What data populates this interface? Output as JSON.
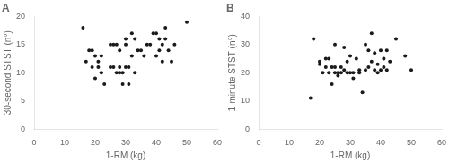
{
  "chart_data": [
    {
      "type": "scatter",
      "title": "A",
      "x_label": "1-RM (kg)",
      "y_label": "30-second STST (n°)",
      "color": "#1a1a1a",
      "grid": false,
      "xlim": [
        0,
        60
      ],
      "ylim": [
        0,
        20
      ],
      "xticks": [
        0,
        10,
        20,
        30,
        40,
        50,
        60
      ],
      "yticks": [
        0,
        5,
        10,
        15,
        20
      ],
      "x": [
        16,
        17,
        18,
        19,
        19,
        20,
        20,
        21,
        21,
        22,
        22,
        23,
        25,
        25,
        26,
        26,
        27,
        27,
        28,
        28,
        28,
        29,
        29,
        30,
        30,
        30,
        31,
        31,
        32,
        32,
        33,
        33,
        34,
        35,
        36,
        37,
        38,
        39,
        40,
        40,
        41,
        41,
        42,
        42,
        43,
        43,
        44,
        45,
        46,
        50
      ],
      "values": [
        18,
        12,
        14,
        11,
        14,
        9,
        13,
        11,
        12,
        10,
        13,
        8,
        15,
        11,
        15,
        11,
        10,
        15,
        10,
        11,
        14,
        10,
        8,
        11,
        15,
        16,
        11,
        8,
        13,
        17,
        10,
        16,
        14,
        14,
        13,
        15,
        15,
        17,
        17,
        13,
        14,
        16,
        15,
        12,
        16,
        18,
        14,
        12,
        15,
        19
      ]
    },
    {
      "type": "scatter",
      "title": "B",
      "x_label": "1-RM (kg)",
      "y_label": "1-minute STST (n°)",
      "color": "#1a1a1a",
      "grid": false,
      "xlim": [
        0,
        60
      ],
      "ylim": [
        0,
        40
      ],
      "xticks": [
        0,
        10,
        20,
        30,
        40,
        50,
        60
      ],
      "yticks": [
        0,
        10,
        20,
        30,
        40
      ],
      "x": [
        17,
        18,
        20,
        20,
        21,
        22,
        22,
        23,
        23,
        24,
        24,
        25,
        25,
        25,
        26,
        26,
        27,
        27,
        28,
        28,
        29,
        29,
        30,
        30,
        31,
        31,
        32,
        33,
        33,
        34,
        35,
        35,
        36,
        36,
        37,
        37,
        38,
        38,
        39,
        39,
        40,
        40,
        41,
        41,
        42,
        42,
        43,
        45,
        48,
        50
      ],
      "values": [
        11,
        32,
        23,
        24,
        20,
        25,
        22,
        20,
        25,
        16,
        22,
        20,
        30,
        22,
        20,
        19,
        20,
        22,
        21,
        29,
        20,
        24,
        20,
        26,
        18,
        20,
        25,
        21,
        20,
        13,
        30,
        21,
        22,
        28,
        24,
        34,
        21,
        27,
        20,
        23,
        21,
        28,
        22,
        25,
        28,
        21,
        24,
        32,
        26,
        21
      ]
    }
  ]
}
